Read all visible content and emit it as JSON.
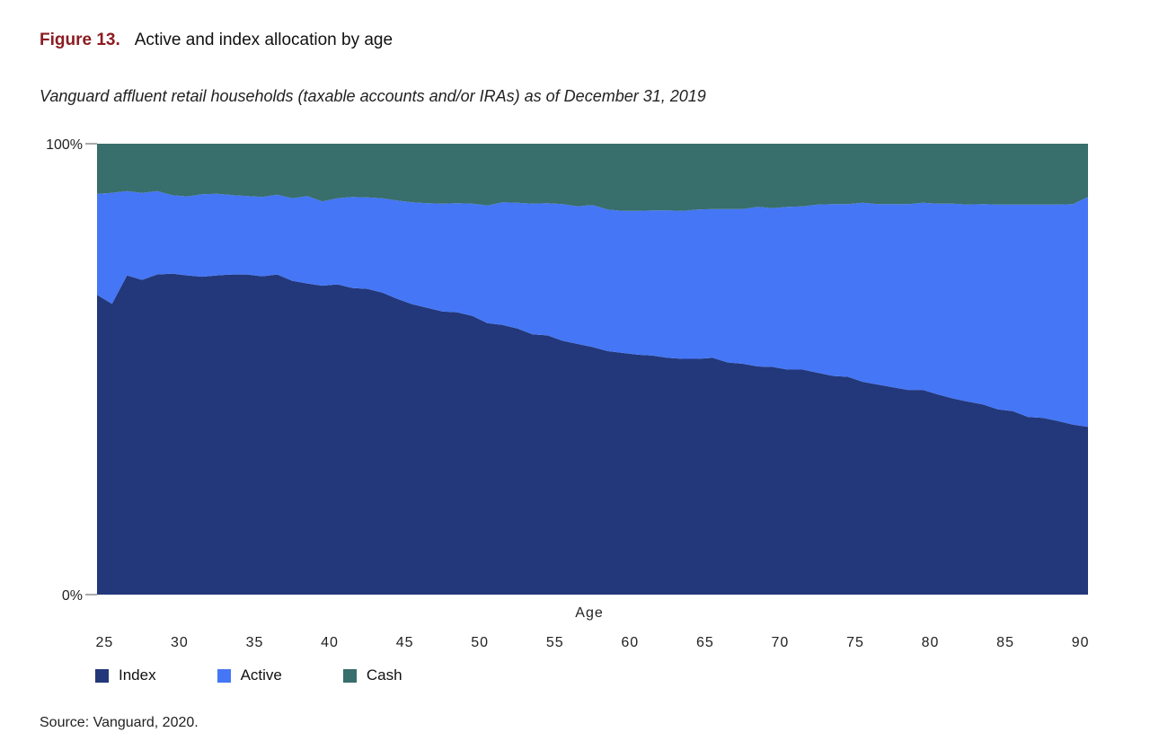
{
  "figure": {
    "label": "Figure 13.",
    "title": "Active and index allocation by age",
    "subtitle": "Vanguard affluent retail households (taxable accounts and/or IRAs) as of December 31, 2019",
    "source": "Source: Vanguard, 2020."
  },
  "colors": {
    "index": "#22387a",
    "active": "#4576f5",
    "cash": "#386e6b"
  },
  "chart_data": {
    "type": "area",
    "stacked": true,
    "xlabel": "Age",
    "ylabel": "",
    "ylim": [
      0,
      100
    ],
    "y_tick_labels": [
      "0%",
      "100%"
    ],
    "x_tick_values": [
      25,
      30,
      35,
      40,
      45,
      50,
      55,
      60,
      65,
      70,
      75,
      80,
      85,
      90
    ],
    "x": [
      24.5,
      25.5,
      26.5,
      27.5,
      28.5,
      29.5,
      30.5,
      31.5,
      32.5,
      33.5,
      34.5,
      35.5,
      36.5,
      37.5,
      38.5,
      39.5,
      40.5,
      41.5,
      42.5,
      43.5,
      44.5,
      45.5,
      46.5,
      47.5,
      48.5,
      49.5,
      50.5,
      51.5,
      52.5,
      53.5,
      54.5,
      55.5,
      56.5,
      57.5,
      58.5,
      59.5,
      60.5,
      61.5,
      62.5,
      63.5,
      64.5,
      65.5,
      66.5,
      67.5,
      68.5,
      69.5,
      70.5,
      71.5,
      72.5,
      73.5,
      74.5,
      75.5,
      76.5,
      77.5,
      78.5,
      79.5,
      80.5,
      81.5,
      82.5,
      83.5,
      84.5,
      85.5,
      86.5,
      87.5,
      88.5,
      89.5,
      90.5
    ],
    "series": [
      {
        "name": "Index",
        "values": [
          66.5,
          64.5,
          70.8,
          69.8,
          71.0,
          71.2,
          70.8,
          70.5,
          70.8,
          71.0,
          71.0,
          70.6,
          71.0,
          69.6,
          69.0,
          68.5,
          68.8,
          68.0,
          67.8,
          67.0,
          65.6,
          64.4,
          63.6,
          62.8,
          62.6,
          61.8,
          60.2,
          59.8,
          59.0,
          57.7,
          57.5,
          56.3,
          55.6,
          54.9,
          54.0,
          53.6,
          53.2,
          53.0,
          52.5,
          52.3,
          52.3,
          52.5,
          51.5,
          51.2,
          50.6,
          50.5,
          49.9,
          49.9,
          49.2,
          48.5,
          48.3,
          47.2,
          46.6,
          46.0,
          45.4,
          45.4,
          44.4,
          43.5,
          42.8,
          42.2,
          41.1,
          40.7,
          39.4,
          39.2,
          38.5,
          37.7,
          37.2
        ]
      },
      {
        "name": "Active",
        "values": [
          22.4,
          24.6,
          18.7,
          19.3,
          18.5,
          17.4,
          17.5,
          18.3,
          18.1,
          17.6,
          17.4,
          17.6,
          17.7,
          18.3,
          19.4,
          18.7,
          19.1,
          20.2,
          20.3,
          20.9,
          21.8,
          22.6,
          23.2,
          23.9,
          24.2,
          24.9,
          26.1,
          27.2,
          27.9,
          29.0,
          29.3,
          30.3,
          30.5,
          31.5,
          31.4,
          31.5,
          31.9,
          32.2,
          32.7,
          32.8,
          33.1,
          33.0,
          34.0,
          34.3,
          35.4,
          35.2,
          36.1,
          36.2,
          37.3,
          38.1,
          38.3,
          39.7,
          40.0,
          40.6,
          41.2,
          41.5,
          42.3,
          43.2,
          43.7,
          44.4,
          45.4,
          45.8,
          47.1,
          47.3,
          48.0,
          48.9,
          51.0
        ]
      },
      {
        "name": "Cash",
        "values": [
          11.1,
          10.9,
          10.5,
          10.9,
          10.5,
          11.4,
          11.7,
          11.2,
          11.1,
          11.4,
          11.6,
          11.8,
          11.3,
          12.1,
          11.6,
          12.8,
          12.1,
          11.8,
          11.9,
          12.1,
          12.6,
          13.0,
          13.2,
          13.3,
          13.2,
          13.3,
          13.7,
          13.0,
          13.1,
          13.3,
          13.2,
          13.4,
          13.9,
          13.6,
          14.6,
          14.9,
          14.9,
          14.8,
          14.8,
          14.9,
          14.6,
          14.5,
          14.5,
          14.5,
          14.0,
          14.3,
          14.0,
          13.9,
          13.5,
          13.4,
          13.4,
          13.1,
          13.4,
          13.4,
          13.4,
          13.1,
          13.3,
          13.3,
          13.5,
          13.4,
          13.5,
          13.5,
          13.5,
          13.5,
          13.5,
          13.4,
          11.8
        ]
      }
    ],
    "legend": {
      "position": "bottom-left",
      "entries": [
        "Index",
        "Active",
        "Cash"
      ]
    }
  }
}
